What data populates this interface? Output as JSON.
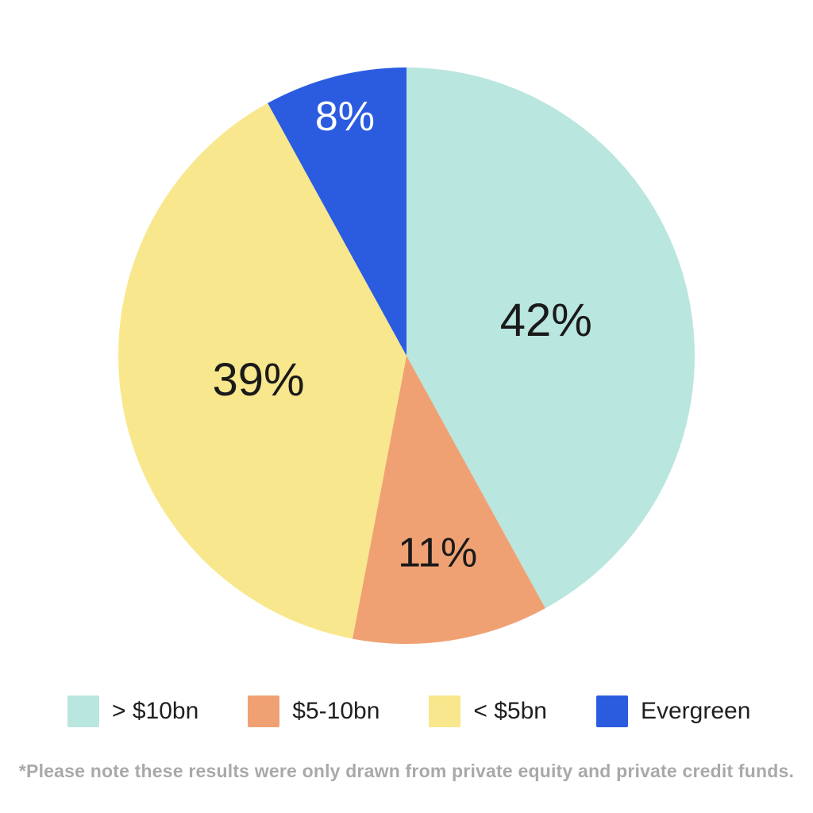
{
  "chart_data": {
    "type": "pie",
    "title": "",
    "categories": [
      "> $10bn",
      "$5-10bn",
      "< $5bn",
      "Evergreen"
    ],
    "values": [
      42,
      11,
      39,
      8
    ],
    "series": [
      {
        "name": "> $10bn",
        "value": 42,
        "percent_label": "42%",
        "color": "#b9e6df",
        "label_color": "#1a1a1a",
        "label_size": 58,
        "label_radius_frac": 0.5
      },
      {
        "name": "$5-10bn",
        "value": 11,
        "percent_label": "11%",
        "color": "#f0a173",
        "label_color": "#1a1a1a",
        "label_size": 52,
        "label_radius_frac": 0.69
      },
      {
        "name": "< $5bn",
        "value": 39,
        "percent_label": "39%",
        "color": "#f9e78d",
        "label_color": "#1a1a1a",
        "label_size": 58,
        "label_radius_frac": 0.52
      },
      {
        "name": "Evergreen",
        "value": 8,
        "percent_label": "8%",
        "color": "#2b5ce0",
        "label_color": "#ffffff",
        "label_size": 52,
        "label_radius_frac": 0.86
      }
    ],
    "start_angle_deg": 0,
    "direction": "clockwise",
    "legend_position": "bottom",
    "footnote": "*Please note these results were only drawn from private equity and private credit funds."
  },
  "style": {
    "background": "#ffffff",
    "legend_text_color": "#1f1f1f",
    "footnote_color": "#a9a9a9"
  }
}
